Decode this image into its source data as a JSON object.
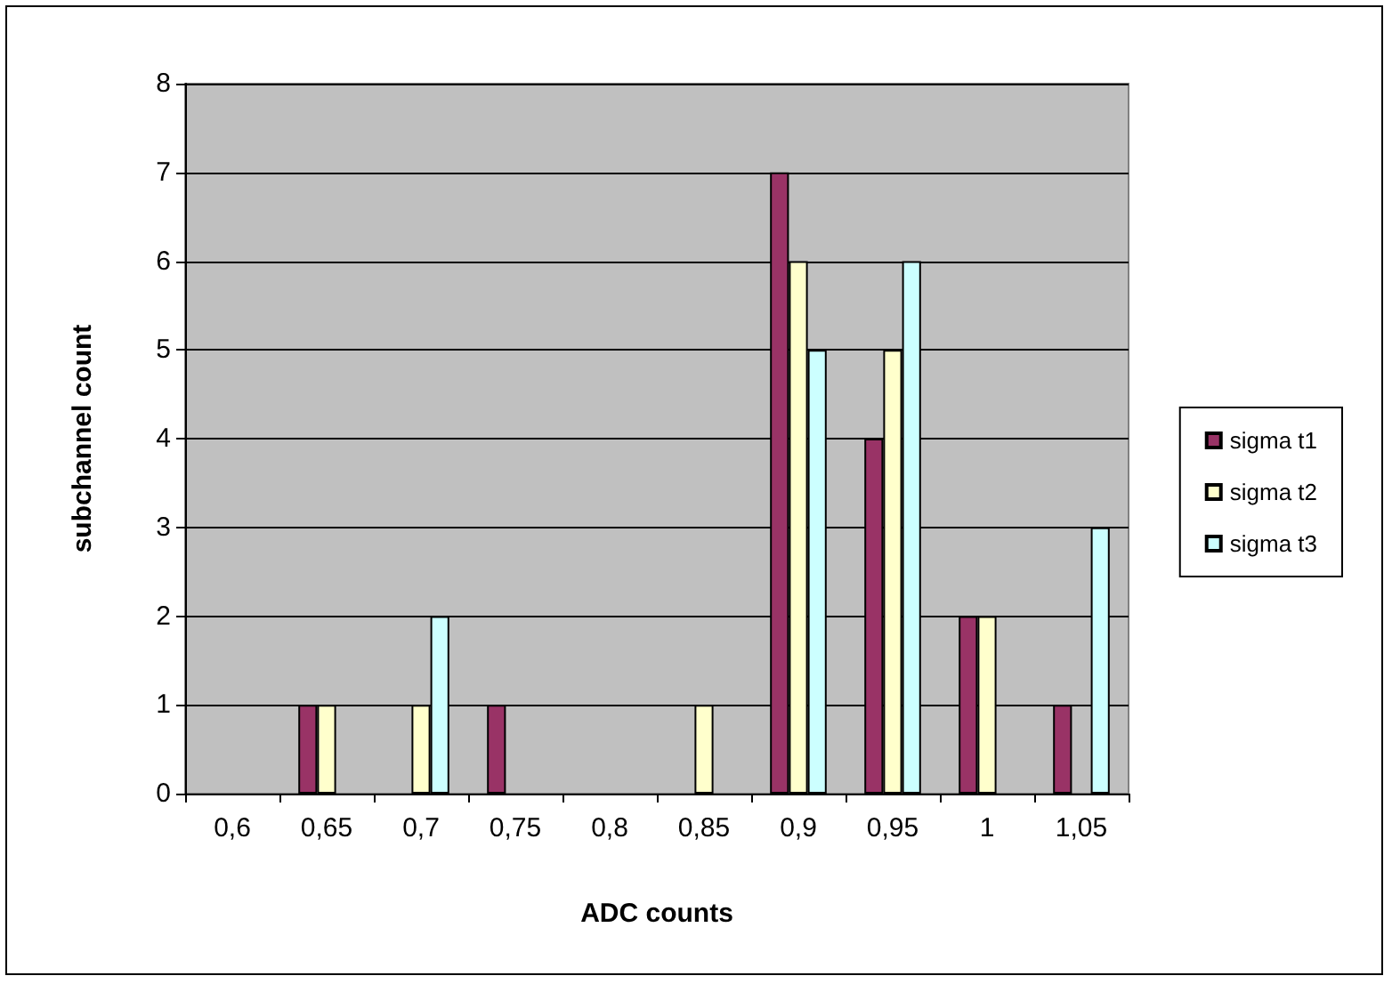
{
  "chart_data": {
    "type": "bar",
    "xlabel": "ADC counts",
    "ylabel": "subchannel count",
    "categories": [
      "0,6",
      "0,65",
      "0,7",
      "0,75",
      "0,8",
      "0,85",
      "0,9",
      "0,95",
      "1",
      "1,05"
    ],
    "series": [
      {
        "name": "sigma t1",
        "color": "#993366",
        "values": [
          0,
          1,
          0,
          1,
          0,
          0,
          7,
          4,
          2,
          1
        ]
      },
      {
        "name": "sigma t2",
        "color": "#ffffcc",
        "values": [
          0,
          1,
          1,
          0,
          0,
          1,
          6,
          5,
          2,
          0
        ]
      },
      {
        "name": "sigma t3",
        "color": "#ccffff",
        "values": [
          0,
          0,
          2,
          0,
          0,
          0,
          5,
          6,
          0,
          3
        ]
      }
    ],
    "ylim": [
      0,
      8
    ],
    "yticks": [
      0,
      1,
      2,
      3,
      4,
      5,
      6,
      7,
      8
    ],
    "grid": "y",
    "legend": "right"
  }
}
